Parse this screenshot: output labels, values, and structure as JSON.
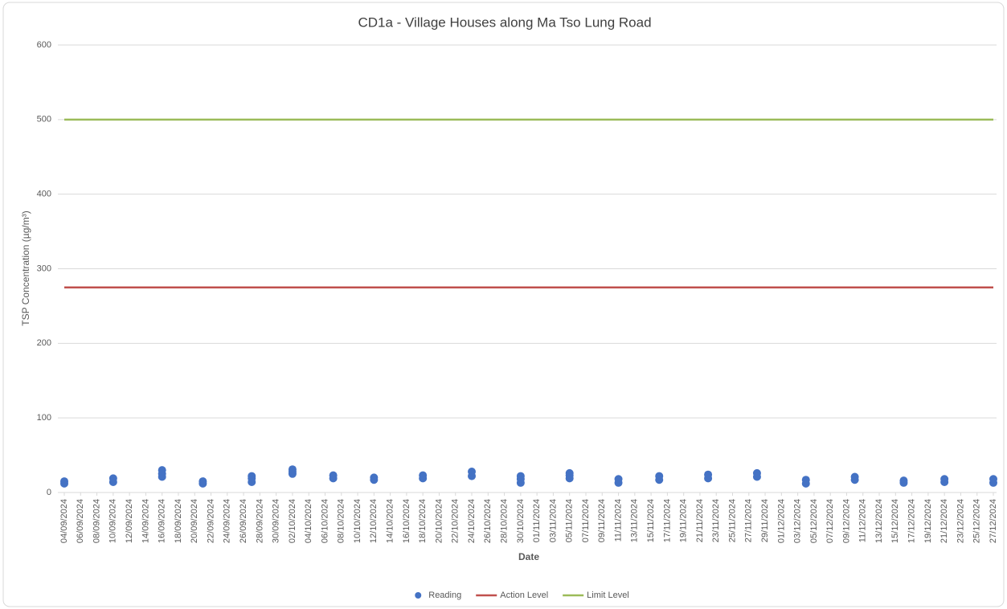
{
  "chart_data": {
    "type": "scatter",
    "title": "CD1a - Village Houses along Ma Tso Lung Road",
    "x_label": "Date",
    "y_label": "TSP Concentration (µg/m³)",
    "xlim": [
      "04/09/2024",
      "27/12/2024"
    ],
    "xticks": [
      "04/09/2024",
      "06/09/2024",
      "08/09/2024",
      "10/09/2024",
      "12/09/2024",
      "14/09/2024",
      "16/09/2024",
      "18/09/2024",
      "20/09/2024",
      "22/09/2024",
      "24/09/2024",
      "26/09/2024",
      "28/09/2024",
      "30/09/2024",
      "02/10/2024",
      "04/10/2024",
      "06/10/2024",
      "08/10/2024",
      "10/10/2024",
      "12/10/2024",
      "14/10/2024",
      "16/10/2024",
      "18/10/2024",
      "20/10/2024",
      "22/10/2024",
      "24/10/2024",
      "26/10/2024",
      "28/10/2024",
      "30/10/2024",
      "01/11/2024",
      "03/11/2024",
      "05/11/2024",
      "07/11/2024",
      "09/11/2024",
      "11/11/2024",
      "13/11/2024",
      "15/11/2024",
      "17/11/2024",
      "19/11/2024",
      "21/11/2024",
      "23/11/2024",
      "25/11/2024",
      "27/11/2024",
      "29/11/2024",
      "01/12/2024",
      "03/12/2024",
      "05/12/2024",
      "07/12/2024",
      "09/12/2024",
      "11/12/2024",
      "13/12/2024",
      "15/12/2024",
      "17/12/2024",
      "19/12/2024",
      "21/12/2024",
      "23/12/2024",
      "25/12/2024",
      "27/12/2024"
    ],
    "ylim": [
      0,
      600
    ],
    "yticks": [
      0,
      100,
      200,
      300,
      400,
      500,
      600
    ],
    "grid": true,
    "legend": "bottom",
    "series": [
      {
        "name": "Reading",
        "type": "scatter",
        "color": "#4472c4",
        "x": [
          "04/09/2024",
          "04/09/2024",
          "10/09/2024",
          "10/09/2024",
          "16/09/2024",
          "16/09/2024",
          "16/09/2024",
          "21/09/2024",
          "21/09/2024",
          "27/09/2024",
          "27/09/2024",
          "27/09/2024",
          "02/10/2024",
          "02/10/2024",
          "02/10/2024",
          "07/10/2024",
          "07/10/2024",
          "12/10/2024",
          "12/10/2024",
          "18/10/2024",
          "18/10/2024",
          "24/10/2024",
          "24/10/2024",
          "30/10/2024",
          "30/10/2024",
          "30/10/2024",
          "05/11/2024",
          "05/11/2024",
          "05/11/2024",
          "11/11/2024",
          "11/11/2024",
          "16/11/2024",
          "16/11/2024",
          "22/11/2024",
          "22/11/2024",
          "28/11/2024",
          "28/11/2024",
          "04/12/2024",
          "04/12/2024",
          "10/12/2024",
          "10/12/2024",
          "16/12/2024",
          "16/12/2024",
          "21/12/2024",
          "21/12/2024",
          "27/12/2024",
          "27/12/2024"
        ],
        "values": [
          12,
          15,
          14,
          19,
          21,
          25,
          30,
          12,
          15,
          14,
          19,
          22,
          25,
          28,
          31,
          19,
          23,
          17,
          20,
          19,
          23,
          22,
          28,
          13,
          18,
          22,
          19,
          23,
          26,
          13,
          18,
          17,
          22,
          19,
          24,
          21,
          26,
          12,
          17,
          17,
          21,
          13,
          16,
          14,
          18,
          13,
          18
        ]
      },
      {
        "name": "Action Level",
        "type": "line",
        "color": "#c0504d",
        "x": [
          "04/09/2024",
          "27/12/2024"
        ],
        "values": [
          275,
          275
        ]
      },
      {
        "name": "Limit Level",
        "type": "line",
        "color": "#9bbb59",
        "x": [
          "04/09/2024",
          "27/12/2024"
        ],
        "values": [
          500,
          500
        ]
      }
    ]
  }
}
